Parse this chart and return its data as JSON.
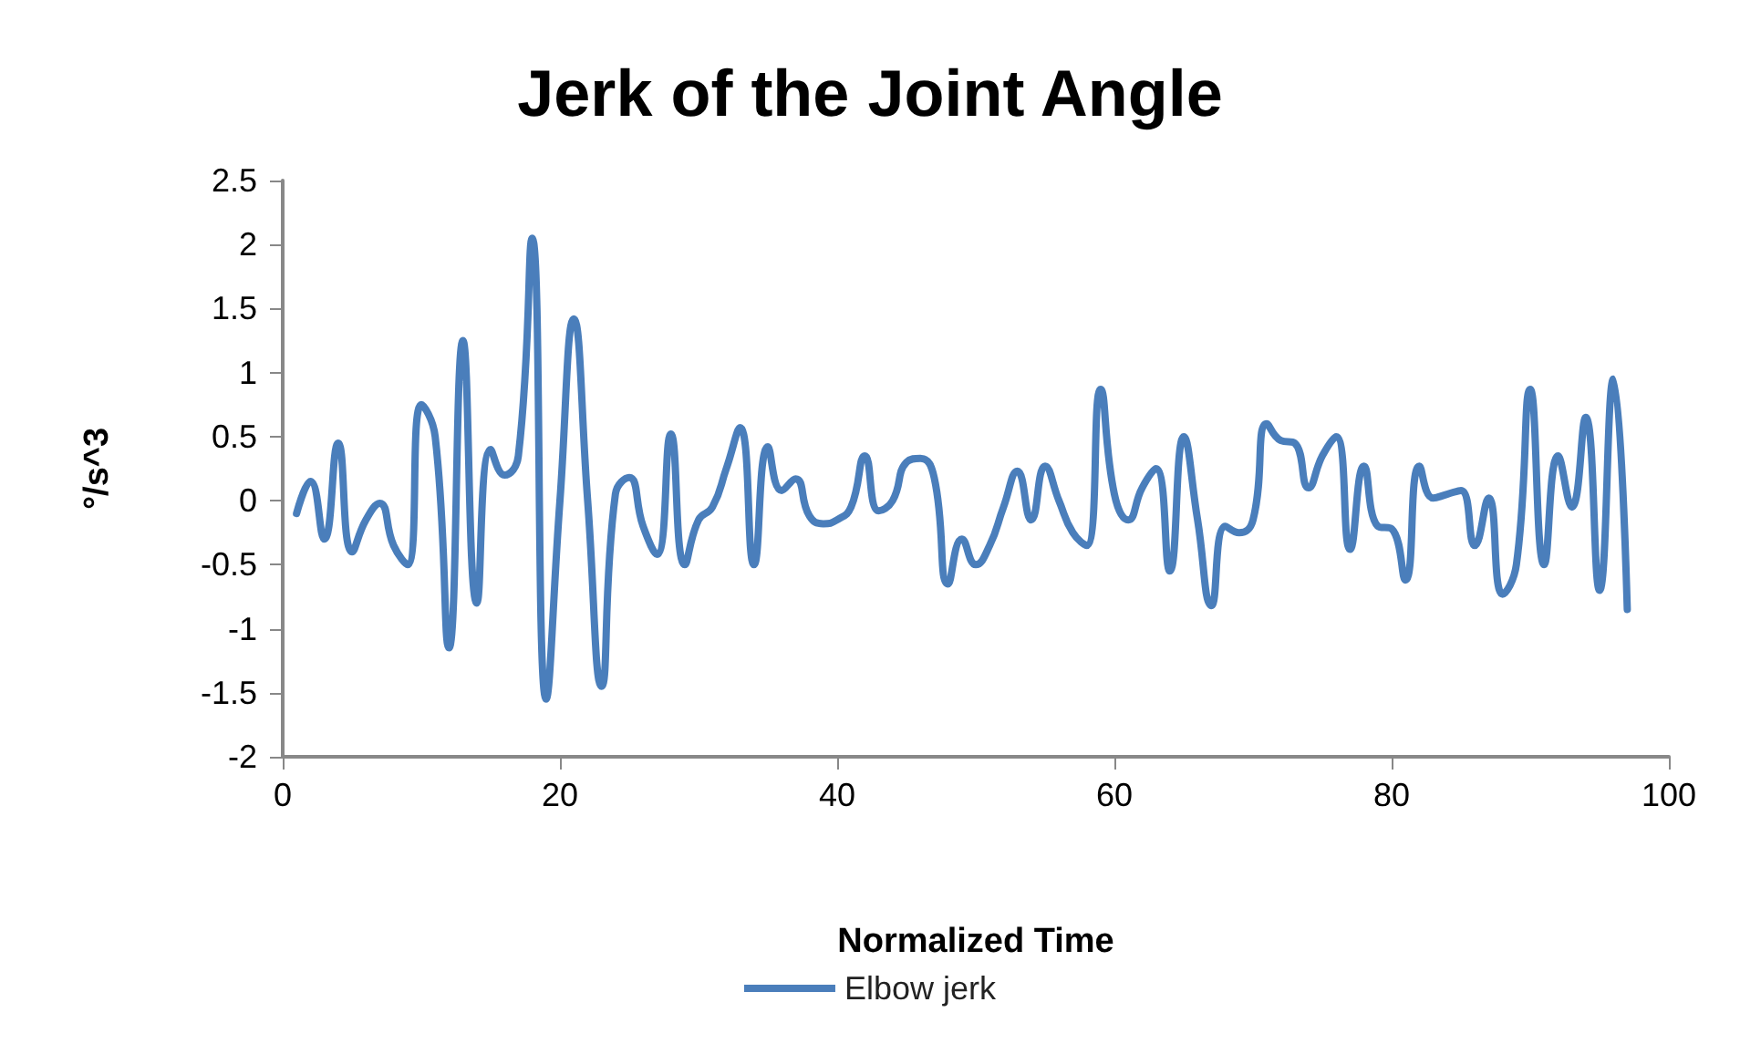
{
  "chart_data": {
    "type": "line",
    "title": "Jerk of the Joint Angle",
    "xlabel": "Normalized Time",
    "ylabel": "°/s^3",
    "x": [
      1,
      2,
      3,
      4,
      5,
      6,
      7,
      8,
      9,
      10,
      11,
      12,
      13,
      14,
      15,
      16,
      17,
      18,
      19,
      20,
      21,
      22,
      23,
      24,
      25,
      26,
      27,
      28,
      29,
      30,
      31,
      32,
      33,
      34,
      35,
      36,
      37,
      38,
      39,
      40,
      41,
      42,
      43,
      44,
      45,
      46,
      47,
      48,
      49,
      50,
      51,
      52,
      53,
      54,
      55,
      56,
      57,
      58,
      59,
      60,
      61,
      62,
      63,
      64,
      65,
      66,
      67,
      68,
      69,
      70,
      71,
      72,
      73,
      74,
      75,
      76,
      77,
      78,
      79,
      80,
      81,
      82,
      83,
      84,
      85,
      86,
      87,
      88,
      89,
      90,
      91,
      92,
      93,
      94,
      95,
      96,
      97
    ],
    "series": [
      {
        "name": "Elbow jerk",
        "color": "#4a7ebb",
        "values": [
          -0.1,
          0.15,
          -0.3,
          0.45,
          -0.4,
          -0.15,
          -0.02,
          -0.35,
          -0.5,
          0.75,
          0.5,
          -1.15,
          1.25,
          -0.8,
          0.4,
          0.2,
          0.35,
          2.05,
          -1.55,
          0.0,
          1.42,
          0.0,
          -1.45,
          0.05,
          0.18,
          -0.2,
          -0.42,
          0.52,
          -0.5,
          -0.15,
          -0.05,
          0.25,
          0.57,
          -0.5,
          0.42,
          0.08,
          0.17,
          -0.12,
          -0.18,
          -0.15,
          -0.05,
          0.35,
          -0.08,
          0.0,
          0.3,
          0.33,
          0.18,
          -0.65,
          -0.3,
          -0.5,
          -0.35,
          -0.05,
          0.23,
          -0.15,
          0.27,
          0.0,
          -0.25,
          -0.35,
          0.87,
          0.05,
          -0.15,
          0.1,
          0.25,
          -0.55,
          0.5,
          -0.15,
          -0.82,
          -0.2,
          -0.25,
          -0.15,
          0.6,
          0.47,
          0.45,
          0.1,
          0.35,
          0.5,
          -0.38,
          0.27,
          -0.2,
          -0.22,
          -0.62,
          0.27,
          0.02,
          0.05,
          0.08,
          -0.35,
          0.02,
          -0.73,
          -0.5,
          0.87,
          -0.5,
          0.35,
          -0.05,
          0.65,
          -0.7,
          0.95,
          -0.85
        ]
      }
    ],
    "xlim": [
      0,
      100
    ],
    "xticks": [
      0,
      20,
      40,
      60,
      80,
      100
    ],
    "ylim": [
      -2,
      2.5
    ],
    "yticks": [
      -2,
      -1.5,
      -1,
      -0.5,
      0,
      0.5,
      1,
      1.5,
      2,
      2.5
    ],
    "legend": "bottom",
    "grid": false,
    "marker": "none",
    "line_style": "solid"
  }
}
